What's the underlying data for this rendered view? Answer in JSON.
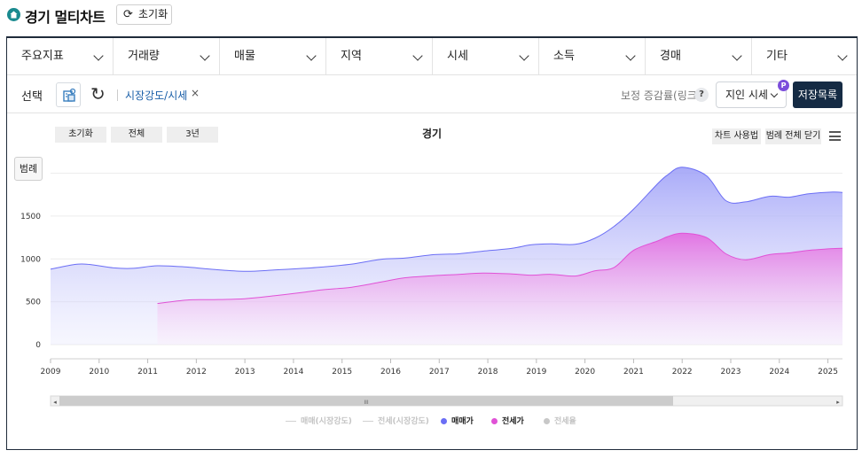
{
  "app": {
    "title": "경기 멀티차트",
    "reset_label": "초기화"
  },
  "menu": [
    {
      "label": "주요지표"
    },
    {
      "label": "거래량"
    },
    {
      "label": "매물"
    },
    {
      "label": "지역"
    },
    {
      "label": "시세"
    },
    {
      "label": "소득"
    },
    {
      "label": "경매"
    },
    {
      "label": "기타"
    }
  ],
  "selection": {
    "label": "선택",
    "tag": "시장강도/시세",
    "tag_remove": "×",
    "correction_text": "보정 증감률(링크)",
    "help_glyph": "?",
    "price_select": "지인 시세",
    "price_badge": "P",
    "save_label": "저장목록"
  },
  "chart_controls": {
    "range_buttons": [
      "초기화",
      "전체",
      "3년"
    ],
    "usage_label": "차트 사용법",
    "close_legend_label": "범례 전체 닫기",
    "legend_toggle_label": "범례"
  },
  "scrollbar": {
    "left_arrow": "◂",
    "right_arrow": "▸",
    "grip": "III"
  },
  "colors": {
    "sale": "#6b6ef5",
    "jeonse": "#e052d6",
    "rate": "#c8c8c8",
    "accent": "#152b44"
  },
  "chart_data": {
    "type": "area",
    "title": "경기",
    "x_ticks": [
      "2009",
      "2010",
      "2011",
      "2012",
      "2013",
      "2014",
      "2015",
      "2016",
      "2017",
      "2018",
      "2019",
      "2020",
      "2021",
      "2022",
      "2023",
      "2024",
      "2025"
    ],
    "y_ticks": [
      "0",
      "500",
      "1000",
      "1500"
    ],
    "ylim": [
      0,
      2150
    ],
    "grid": true,
    "legend_position": "bottom",
    "x": [
      2009.0,
      2009.5,
      2009.8,
      2010.3,
      2010.7,
      2011.2,
      2011.8,
      2012.3,
      2013.0,
      2013.6,
      2014.2,
      2014.6,
      2015.2,
      2015.8,
      2016.3,
      2016.9,
      2017.4,
      2017.9,
      2018.5,
      2018.9,
      2019.3,
      2019.8,
      2020.2,
      2020.6,
      2021.0,
      2021.5,
      2021.7,
      2022.0,
      2022.5,
      2022.9,
      2023.3,
      2023.8,
      2024.2,
      2024.6,
      2025.1,
      2025.3
    ],
    "series": [
      {
        "name": "매매가",
        "values": [
          880,
          935,
          935,
          895,
          890,
          920,
          905,
          880,
          855,
          870,
          890,
          905,
          940,
          995,
          1010,
          1050,
          1060,
          1090,
          1125,
          1165,
          1175,
          1170,
          1240,
          1380,
          1580,
          1880,
          1980,
          2070,
          1970,
          1680,
          1665,
          1730,
          1720,
          1760,
          1780,
          1775
        ]
      },
      {
        "name": "전세가",
        "start": 2011,
        "values": [
          null,
          null,
          null,
          null,
          null,
          480,
          520,
          525,
          535,
          570,
          610,
          640,
          670,
          730,
          780,
          805,
          820,
          835,
          825,
          810,
          820,
          800,
          860,
          900,
          1100,
          1210,
          1260,
          1300,
          1250,
          1060,
          990,
          1050,
          1070,
          1100,
          1120,
          1125
        ]
      }
    ],
    "legend": [
      {
        "label": "매매(시장강도)",
        "active": false
      },
      {
        "label": "전세(시장강도)",
        "active": false
      },
      {
        "label": "매매가",
        "active": true
      },
      {
        "label": "전세가",
        "active": true
      },
      {
        "label": "전세율",
        "active": false
      }
    ]
  }
}
